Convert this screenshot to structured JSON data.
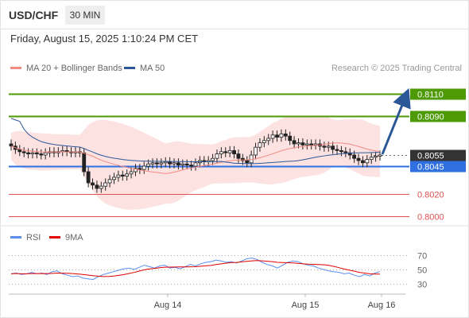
{
  "header": {
    "symbol": "USD/CHF",
    "timeframe": "30 MIN",
    "datetime": "Friday, August 15, 2025 1:10:24 PM CET"
  },
  "legend": {
    "ma20": {
      "label": "MA 20 + Bollinger Bands",
      "color": "#f28b82"
    },
    "ma50": {
      "label": "MA 50",
      "color": "#2b5797"
    },
    "rsi": {
      "label": "RSI",
      "color": "#5b8def"
    },
    "ma9": {
      "label": "9MA",
      "color": "#e00000"
    }
  },
  "copyright": "Research © 2025 Trading Central",
  "price_levels": [
    {
      "value": "0.8110",
      "kind": "resistance",
      "color": "#4e9a06"
    },
    {
      "value": "0.8090",
      "kind": "resistance",
      "color": "#4e9a06"
    },
    {
      "value": "0.8055",
      "kind": "current",
      "color": "#333333"
    },
    {
      "value": "0.8045",
      "kind": "pivot",
      "color": "#2f6fe0"
    },
    {
      "value": "0.8020",
      "kind": "support",
      "color": "#e05050"
    },
    {
      "value": "0.8000",
      "kind": "support",
      "color": "#e05050"
    }
  ],
  "rsi_levels": [
    "70",
    "50",
    "30"
  ],
  "x_labels": [
    "Aug 14",
    "Aug 15",
    "Aug 16"
  ],
  "chart_data": {
    "type": "candlestick",
    "price_axis": [
      0.8,
      0.802,
      0.8045,
      0.8055,
      0.809,
      0.811
    ],
    "close": [
      0.8063,
      0.806,
      0.8058,
      0.8057,
      0.8056,
      0.8057,
      0.8056,
      0.8055,
      0.8057,
      0.8058,
      0.8057,
      0.8058,
      0.8059,
      0.8058,
      0.8057,
      0.8058,
      0.8057,
      0.804,
      0.803,
      0.8028,
      0.8025,
      0.8027,
      0.803,
      0.8033,
      0.8035,
      0.8037,
      0.8036,
      0.8038,
      0.804,
      0.8043,
      0.8042,
      0.8045,
      0.8047,
      0.8048,
      0.8047,
      0.8048,
      0.8049,
      0.8047,
      0.8048,
      0.8046,
      0.8047,
      0.8046,
      0.8045,
      0.8048,
      0.805,
      0.8049,
      0.805,
      0.8052,
      0.8056,
      0.8058,
      0.8057,
      0.8059,
      0.8056,
      0.8052,
      0.805,
      0.8048,
      0.8055,
      0.8062,
      0.8066,
      0.8068,
      0.807,
      0.8073,
      0.8071,
      0.8074,
      0.8072,
      0.8068,
      0.8065,
      0.8066,
      0.8064,
      0.8065,
      0.8064,
      0.8065,
      0.8063,
      0.8062,
      0.8063,
      0.806,
      0.8059,
      0.8058,
      0.8057,
      0.8055,
      0.8052,
      0.805,
      0.8048,
      0.8051,
      0.8053,
      0.8054,
      0.8055
    ],
    "rsi": [
      44,
      45,
      43,
      44,
      46,
      44,
      45,
      43,
      47,
      48,
      44,
      42,
      40,
      41,
      38,
      37,
      36,
      40,
      43,
      45,
      47,
      49,
      51,
      52,
      50,
      53,
      56,
      54,
      52,
      55,
      56,
      52,
      53,
      51,
      54,
      57,
      55,
      58,
      60,
      61,
      63,
      62,
      60,
      61,
      59,
      62,
      65,
      66,
      64,
      60,
      57,
      55,
      52,
      56,
      60,
      62,
      61,
      58,
      56,
      55,
      52,
      50,
      48,
      47,
      46,
      44,
      45,
      42,
      40,
      43,
      41,
      45,
      47
    ]
  }
}
